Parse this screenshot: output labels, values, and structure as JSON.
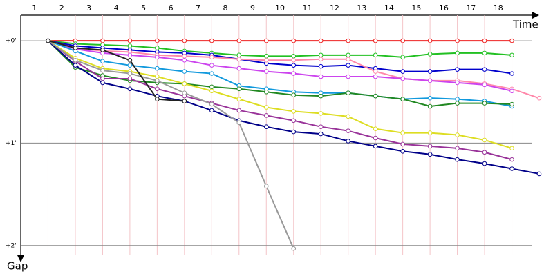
{
  "chart_data": {
    "type": "line",
    "x_label": "Time",
    "y_label": "Gap",
    "xlim": [
      0,
      19
    ],
    "ylim": [
      -0.25,
      2.15
    ],
    "y_inverted": true,
    "grid": true,
    "xticks": [
      {
        "value": 0.5,
        "label": "1"
      },
      {
        "value": 1.5,
        "label": "2"
      },
      {
        "value": 2.5,
        "label": "3"
      },
      {
        "value": 3.5,
        "label": "4"
      },
      {
        "value": 4.5,
        "label": "5"
      },
      {
        "value": 5.5,
        "label": "6"
      },
      {
        "value": 6.5,
        "label": "7"
      },
      {
        "value": 7.5,
        "label": "8"
      },
      {
        "value": 8.5,
        "label": "9"
      },
      {
        "value": 9.5,
        "label": "10"
      },
      {
        "value": 10.5,
        "label": "11"
      },
      {
        "value": 11.5,
        "label": "12"
      },
      {
        "value": 12.5,
        "label": "13"
      },
      {
        "value": 13.5,
        "label": "14"
      },
      {
        "value": 14.5,
        "label": "15"
      },
      {
        "value": 15.5,
        "label": "16"
      },
      {
        "value": 16.5,
        "label": "17"
      },
      {
        "value": 17.5,
        "label": "18"
      }
    ],
    "yticks": [
      {
        "value": 0,
        "label": "+0'"
      },
      {
        "value": 1,
        "label": "+1'"
      },
      {
        "value": 2,
        "label": "+2'"
      }
    ],
    "x": [
      1,
      2,
      3,
      4,
      5,
      6,
      7,
      8,
      9,
      10,
      11,
      12,
      13,
      14,
      15,
      16,
      17,
      18,
      19
    ],
    "series": [
      {
        "color": "#ee2222",
        "values": [
          0,
          0,
          0,
          0,
          0,
          0,
          0,
          0,
          0,
          0,
          0,
          0,
          0,
          0,
          0,
          0,
          0,
          0,
          null
        ]
      },
      {
        "color": "#22c022",
        "values": [
          0,
          0.03,
          0.04,
          0.05,
          0.07,
          0.1,
          0.12,
          0.14,
          0.15,
          0.15,
          0.14,
          0.14,
          0.14,
          0.16,
          0.13,
          0.12,
          0.12,
          0.14,
          null
        ]
      },
      {
        "color": "#0000cc",
        "values": [
          0,
          0.05,
          0.07,
          0.09,
          0.11,
          0.12,
          0.14,
          0.18,
          0.22,
          0.24,
          0.25,
          0.24,
          0.27,
          0.3,
          0.3,
          0.28,
          0.28,
          0.32,
          null
        ]
      },
      {
        "color": "#ff88aa",
        "values": [
          0,
          0.07,
          0.1,
          0.11,
          0.14,
          0.15,
          0.16,
          0.18,
          0.19,
          0.19,
          0.18,
          0.18,
          0.3,
          0.37,
          0.39,
          0.39,
          0.42,
          0.47,
          0.56
        ]
      },
      {
        "color": "#cc44ee",
        "values": [
          0,
          0.08,
          0.12,
          0.14,
          0.16,
          0.19,
          0.24,
          0.27,
          0.3,
          0.32,
          0.35,
          0.35,
          0.35,
          0.37,
          0.39,
          0.41,
          0.43,
          0.49,
          null
        ]
      },
      {
        "color": "#1199dd",
        "values": [
          0,
          0.1,
          0.2,
          0.24,
          0.27,
          0.3,
          0.32,
          0.44,
          0.47,
          0.5,
          0.51,
          0.51,
          0.54,
          0.57,
          0.56,
          0.57,
          0.59,
          0.64,
          null
        ]
      },
      {
        "color": "#228822",
        "values": [
          0,
          0.26,
          0.34,
          0.39,
          0.41,
          0.42,
          0.45,
          0.47,
          0.5,
          0.53,
          0.54,
          0.51,
          0.54,
          0.57,
          0.64,
          0.61,
          0.61,
          0.62,
          null
        ]
      },
      {
        "color": "#dddd22",
        "values": [
          0,
          0.17,
          0.27,
          0.3,
          0.35,
          0.42,
          0.49,
          0.57,
          0.65,
          0.69,
          0.71,
          0.74,
          0.86,
          0.9,
          0.9,
          0.92,
          0.97,
          1.05,
          null
        ]
      },
      {
        "color": "#993399",
        "values": [
          0,
          0.2,
          0.37,
          0.37,
          0.47,
          0.54,
          0.61,
          0.68,
          0.73,
          0.78,
          0.84,
          0.88,
          0.95,
          1.01,
          1.03,
          1.05,
          1.09,
          1.16,
          null
        ]
      },
      {
        "color": "#000088",
        "values": [
          0,
          0.24,
          0.41,
          0.47,
          0.54,
          0.59,
          0.68,
          0.78,
          0.84,
          0.89,
          0.91,
          0.98,
          1.03,
          1.08,
          1.11,
          1.16,
          1.2,
          1.25,
          1.3
        ]
      },
      {
        "color": "#999999",
        "values": [
          0,
          0.19,
          0.29,
          0.32,
          0.39,
          0.51,
          0.62,
          0.8,
          1.42,
          2.03,
          null,
          null,
          null,
          null,
          null,
          null,
          null,
          null,
          null
        ]
      },
      {
        "color": "#222222",
        "values": [
          0,
          0.07,
          0.09,
          0.19,
          0.57,
          0.59,
          null,
          null,
          null,
          null,
          null,
          null,
          null,
          null,
          null,
          null,
          null,
          null,
          null
        ]
      }
    ]
  }
}
